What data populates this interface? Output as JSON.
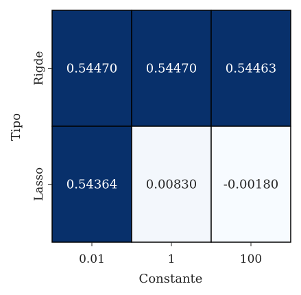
{
  "chart_data": {
    "type": "heatmap",
    "title": "",
    "xlabel": "Constante",
    "ylabel": "Tipo",
    "x_categories": [
      "0.01",
      "1",
      "100"
    ],
    "y_categories": [
      "Rigde",
      "Lasso"
    ],
    "values": [
      [
        0.5447,
        0.5447,
        0.54463
      ],
      [
        0.54364,
        0.0083,
        -0.0018
      ]
    ],
    "cell_labels": [
      [
        "0.54470",
        "0.54470",
        "0.54463"
      ],
      [
        "0.54364",
        "0.00830",
        "-0.00180"
      ]
    ],
    "colormap": "Blues",
    "color_low": "#f7fbff",
    "color_high": "#08306b",
    "text_light": "#ffffff",
    "text_dark": "#262626",
    "grid_color": "#000000",
    "colorbar": false,
    "grid": false,
    "legend": "none"
  }
}
